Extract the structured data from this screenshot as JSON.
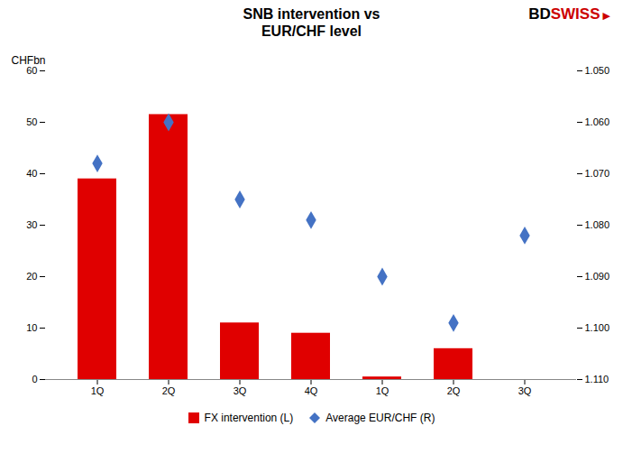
{
  "chart_data": {
    "type": "bar",
    "title": "SNB intervention vs\nEUR/CHF level",
    "ylabel": "CHFbn",
    "categories": [
      "1Q",
      "2Q",
      "3Q",
      "4Q",
      "1Q",
      "2Q",
      "3Q"
    ],
    "series": [
      {
        "name": "FX intervention (L)",
        "type": "bar",
        "color": "#e00000",
        "values": [
          39.0,
          51.5,
          11.0,
          9.0,
          0.5,
          6.0,
          0.0
        ]
      },
      {
        "name": "Average EUR/CHF (R)",
        "type": "scatter",
        "marker": "diamond",
        "color": "#4472c4",
        "axis": "y2",
        "values": [
          1.068,
          1.06,
          1.075,
          1.079,
          1.09,
          1.099,
          1.082
        ]
      }
    ],
    "ylim": [
      0,
      60
    ],
    "yticks": [
      0,
      10,
      20,
      30,
      40,
      50,
      60
    ],
    "y2lim": [
      1.11,
      1.05
    ],
    "y2ticks": [
      {
        "value": 1.05,
        "label": "1.050"
      },
      {
        "value": 1.06,
        "label": "1.060"
      },
      {
        "value": 1.07,
        "label": "1.070"
      },
      {
        "value": 1.08,
        "label": "1.080"
      },
      {
        "value": 1.09,
        "label": "1.090"
      },
      {
        "value": 1.1,
        "label": "1.100"
      },
      {
        "value": 1.11,
        "label": "1.110"
      }
    ],
    "grid": false,
    "legend": "bottom",
    "annotations": [
      {
        "text": "BD",
        "color": "#000000"
      },
      {
        "text": "SWISS",
        "color": "#cc0000"
      },
      {
        "text": "▶",
        "color": "#cc0000"
      }
    ]
  }
}
